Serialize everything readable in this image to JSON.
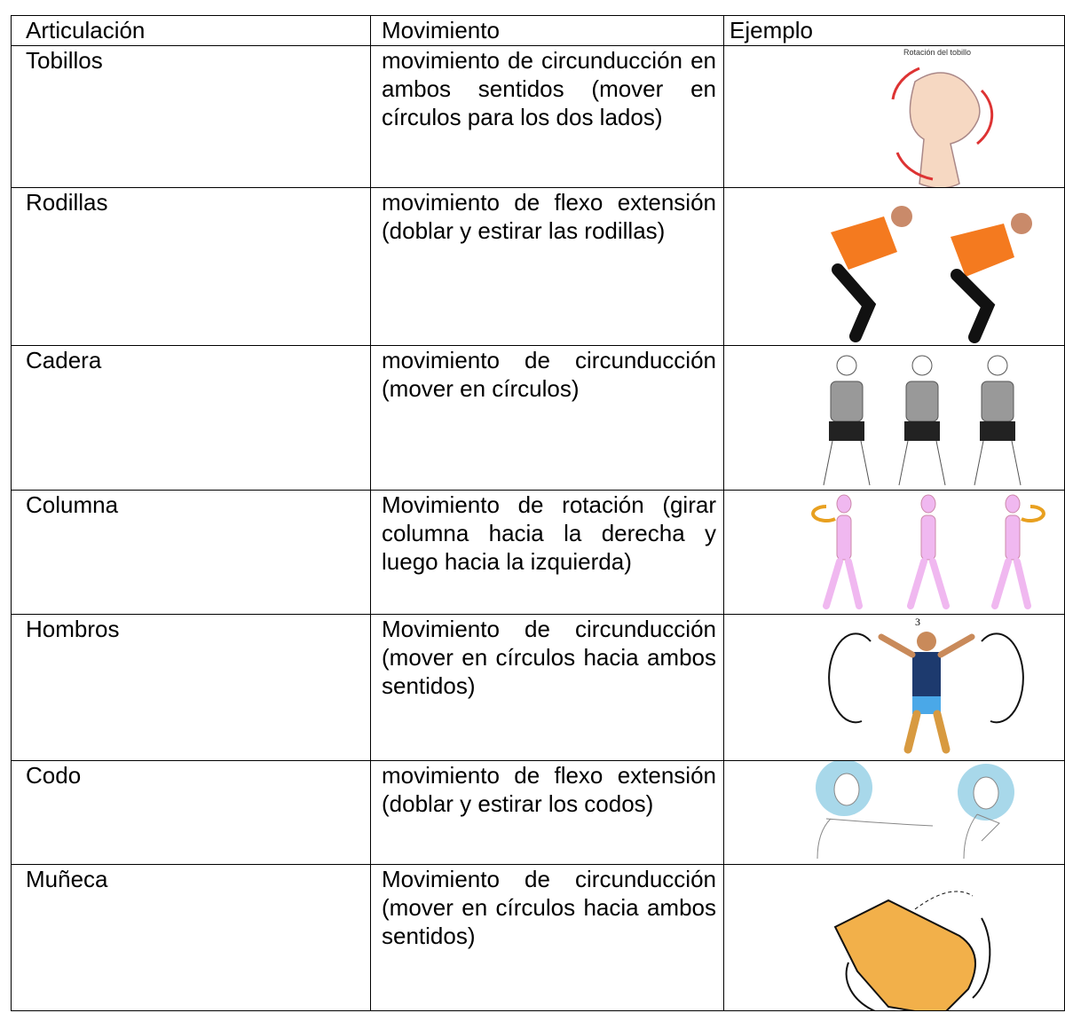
{
  "table": {
    "header": [
      "Articulación",
      "Movimiento",
      "Ejemplo"
    ],
    "rows": [
      [
        "Tobillos",
        "movimiento de circunducción en ambos sentidos (mover en círculos para los dos lados)"
      ],
      [
        "Rodillas",
        "movimiento de flexo extensión (doblar y estirar las rodillas)"
      ],
      [
        "Cadera",
        "movimiento de circunducción (mover en círculos)"
      ],
      [
        "Columna",
        "Movimiento de rotación (girar columna hacia la derecha y luego hacia la izquierda)"
      ],
      [
        "Hombros",
        "Movimiento de circunducción (mover en círculos hacia ambos sentidos)"
      ],
      [
        "Codo",
        "movimiento de flexo extensión (doblar y estirar los codos)"
      ],
      [
        "Muñeca",
        "Movimiento de circunducción (mover en círculos hacia ambos sentidos)"
      ]
    ],
    "image_labels": {
      "tobillo": "Rotación del tobillo",
      "hombros": "3"
    }
  }
}
